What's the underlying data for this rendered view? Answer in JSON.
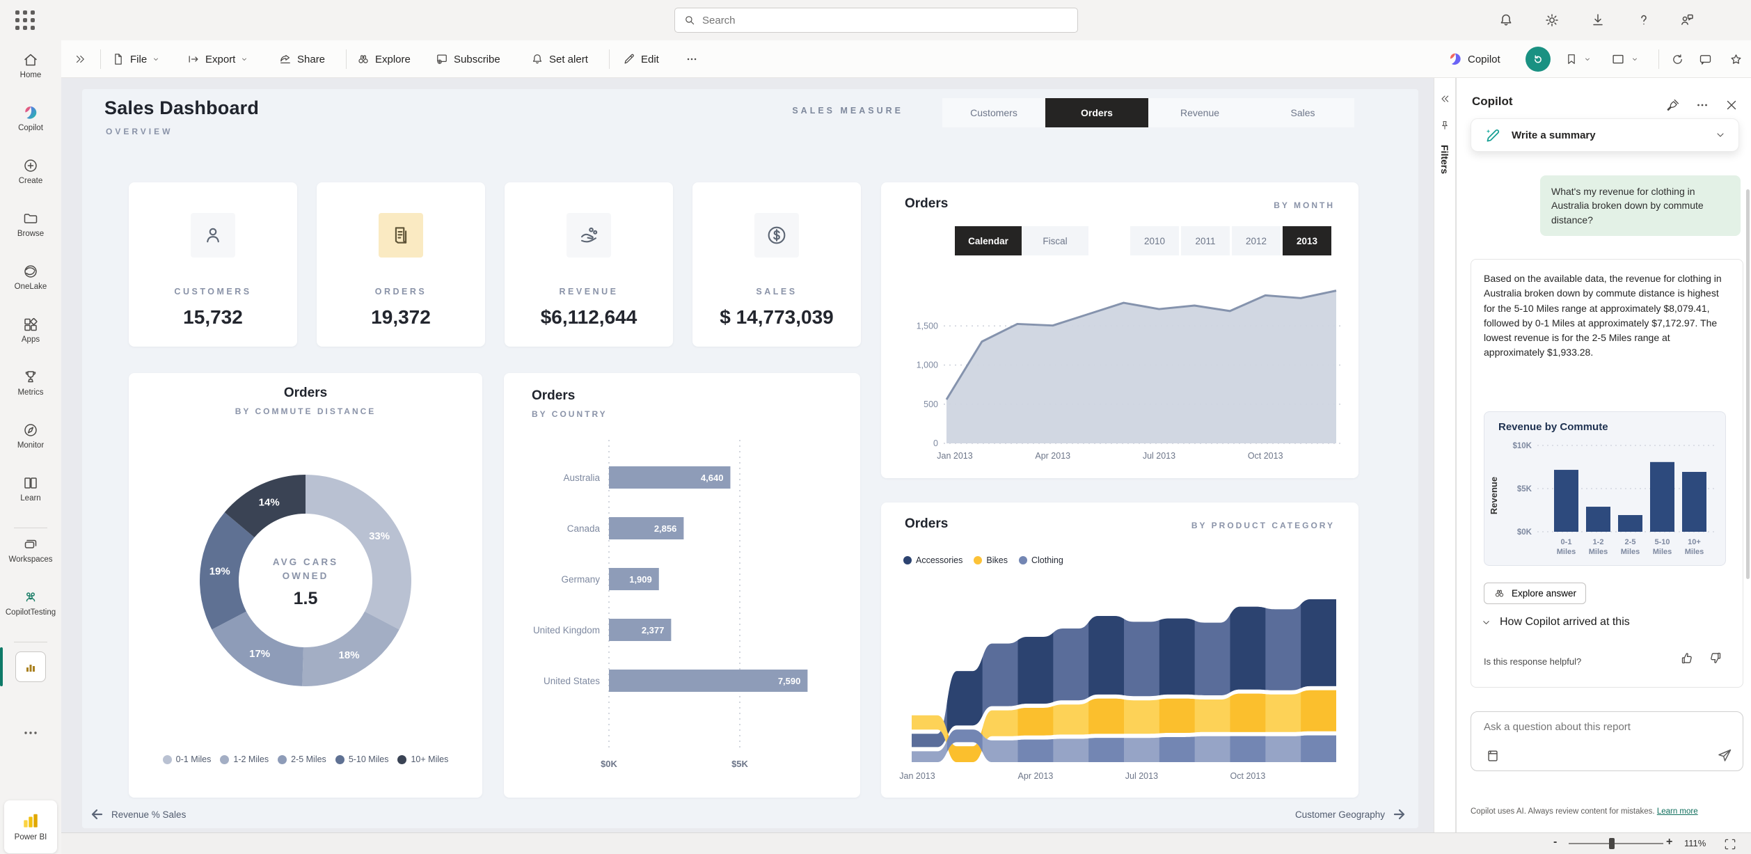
{
  "topbar": {
    "search_placeholder": "Search"
  },
  "sidebar": {
    "items": [
      {
        "label": "Home",
        "icon": "home-icon"
      },
      {
        "label": "Copilot",
        "icon": "copilot-icon"
      },
      {
        "label": "Create",
        "icon": "plus-circle-icon"
      },
      {
        "label": "Browse",
        "icon": "folder-icon"
      },
      {
        "label": "OneLake",
        "icon": "onelake-icon"
      },
      {
        "label": "Apps",
        "icon": "apps-icon"
      },
      {
        "label": "Metrics",
        "icon": "trophy-icon"
      },
      {
        "label": "Monitor",
        "icon": "compass-icon"
      },
      {
        "label": "Learn",
        "icon": "book-icon"
      },
      {
        "label": "Workspaces",
        "icon": "layers-icon"
      },
      {
        "label": "CopilotTesting",
        "icon": "people-icon"
      }
    ],
    "product": "Power BI"
  },
  "toolbar": {
    "file": "File",
    "export": "Export",
    "share": "Share",
    "explore": "Explore",
    "subscribe": "Subscribe",
    "set_alert": "Set alert",
    "edit": "Edit",
    "copilot_label": "Copilot"
  },
  "report": {
    "title": "Sales Dashboard",
    "subtitle": "OVERVIEW",
    "measure_label": "SALES MEASURE",
    "tabs": [
      {
        "label": "Customers"
      },
      {
        "label": "Orders"
      },
      {
        "label": "Revenue"
      },
      {
        "label": "Sales"
      }
    ],
    "active_tab": "Orders",
    "kpis": [
      {
        "label": "CUSTOMERS",
        "value": "15,732",
        "icon": "person-icon"
      },
      {
        "label": "ORDERS",
        "value": "19,372",
        "icon": "invoice-icon"
      },
      {
        "label": "REVENUE",
        "value": "$6,112,644",
        "icon": "coins-hand-icon"
      },
      {
        "label": "SALES",
        "value": "$ 14,773,039",
        "icon": "dollar-circle-icon"
      }
    ],
    "footer_nav": {
      "prev": "Revenue % Sales",
      "next": "Customer Geography"
    }
  },
  "filters_pane": {
    "label": "Filters"
  },
  "copilot": {
    "title": "Copilot",
    "summary_prompt": "Write a summary",
    "user_question": "What's my revenue for clothing in Australia broken down by commute distance?",
    "answer": "Based on the available data, the revenue for clothing in Australia broken down by commute distance is highest for the 5-10 Miles range at approximately $8,079.41, followed by 0-1 Miles at approximately $7,172.97. The lowest revenue is for the 2-5 Miles range at approximately $1,933.28.",
    "explore_label": "Explore answer",
    "how_label": "How Copilot arrived at this",
    "helpful_label": "Is this response helpful?",
    "input_placeholder": "Ask a question about this report",
    "disclaimer": "Copilot uses AI. Always review content for mistakes.",
    "learn_more": "Learn more"
  },
  "statusbar": {
    "zoom": "111%"
  },
  "chart_data": [
    {
      "id": "orders_by_month",
      "type": "area",
      "title": "Orders",
      "subtitle": "BY MONTH",
      "toggles": [
        {
          "label": "Calendar",
          "active": true
        },
        {
          "label": "Fiscal",
          "active": false
        }
      ],
      "years": [
        {
          "label": "2010",
          "active": false
        },
        {
          "label": "2011",
          "active": false
        },
        {
          "label": "2012",
          "active": false
        },
        {
          "label": "2013",
          "active": true
        }
      ],
      "x": [
        "Jan 2013",
        "Feb 2013",
        "Mar 2013",
        "Apr 2013",
        "May 2013",
        "Jun 2013",
        "Jul 2013",
        "Aug 2013",
        "Sep 2013",
        "Oct 2013",
        "Nov 2013",
        "Dec 2013"
      ],
      "values": [
        560,
        1300,
        1525,
        1505,
        1650,
        1795,
        1715,
        1760,
        1690,
        1890,
        1855,
        1950
      ],
      "ylim": [
        0,
        2000
      ],
      "yticks": [
        0,
        500,
        1000,
        1500
      ],
      "xtick_labels": [
        "Jan 2013",
        "Apr 2013",
        "Jul 2013",
        "Oct 2013"
      ],
      "line_color": "#8593ad",
      "fill_color": "#cfd5e0"
    },
    {
      "id": "orders_by_commute",
      "type": "donut",
      "title": "Orders",
      "subtitle": "BY COMMUTE DISTANCE",
      "categories": [
        "0-1 Miles",
        "1-2 Miles",
        "2-5 Miles",
        "5-10 Miles",
        "10+ Miles"
      ],
      "values_pct": [
        33,
        18,
        17,
        19,
        14
      ],
      "colors": [
        "#b9c1d2",
        "#a3aec4",
        "#8e9cb8",
        "#5f7193",
        "#3a4354"
      ],
      "center_label_1": "AVG CARS",
      "center_label_2": "OWNED",
      "center_value": "1.5"
    },
    {
      "id": "orders_by_country",
      "type": "hbar",
      "title": "Orders",
      "subtitle": "BY COUNTRY",
      "categories": [
        "Australia",
        "Canada",
        "Germany",
        "United Kingdom",
        "United States"
      ],
      "values": [
        4640,
        2856,
        1909,
        2377,
        7590
      ],
      "value_labels": [
        "4,640",
        "2,856",
        "1,909",
        "2,377",
        "7,590"
      ],
      "xticks": [
        "$0K",
        "$5K"
      ],
      "xtick_values": [
        0,
        5000
      ],
      "bar_color": "#8e9cb8"
    },
    {
      "id": "orders_by_product",
      "type": "ribbon",
      "title": "Orders",
      "subtitle": "BY PRODUCT CATEGORY",
      "series": [
        {
          "name": "Accessories",
          "legend_color": "#2c4370",
          "color_light": "#5a6d9a",
          "color_dark": "#2c4370",
          "values": [
            32,
            130,
            150,
            160,
            172,
            188,
            178,
            182,
            174,
            198,
            194,
            208
          ]
        },
        {
          "name": "Bikes",
          "legend_color": "#fcc237",
          "color_light": "#fdd257",
          "color_dark": "#fbbf2d",
          "values": [
            34,
            38,
            62,
            66,
            72,
            84,
            80,
            82,
            78,
            92,
            90,
            98
          ]
        },
        {
          "name": "Clothing",
          "legend_color": "#7386b3",
          "color_light": "#96a4c6",
          "color_dark": "#7386b3",
          "values": [
            26,
            30,
            52,
            54,
            56,
            58,
            58,
            60,
            62,
            62,
            62,
            64
          ]
        }
      ],
      "stack_orders": [
        [
          1,
          0,
          2
        ],
        [
          0,
          2,
          1
        ],
        [
          0,
          1,
          2
        ],
        [
          0,
          1,
          2
        ],
        [
          0,
          1,
          2
        ],
        [
          0,
          1,
          2
        ],
        [
          0,
          1,
          2
        ],
        [
          0,
          1,
          2
        ],
        [
          0,
          1,
          2
        ],
        [
          0,
          1,
          2
        ],
        [
          0,
          1,
          2
        ],
        [
          0,
          1,
          2
        ]
      ],
      "xtick_labels": [
        "Jan 2013",
        "Apr 2013",
        "Jul 2013",
        "Oct 2013"
      ]
    },
    {
      "id": "revenue_by_commute",
      "type": "bar",
      "title": "Revenue by Commute",
      "ylabel": "Revenue",
      "categories": [
        "0-1 Miles",
        "1-2 Miles",
        "2-5 Miles",
        "5-10 Miles",
        "10+ Miles"
      ],
      "values": [
        7173,
        2900,
        1933,
        8079,
        6935
      ],
      "ylim": [
        0,
        10000
      ],
      "ytick_labels": [
        "$0K",
        "$5K",
        "$10K"
      ],
      "bar_color": "#2d4a7d"
    }
  ]
}
